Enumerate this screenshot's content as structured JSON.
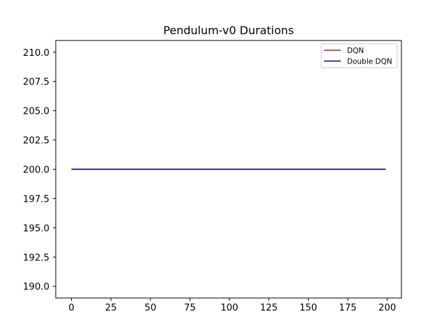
{
  "chart_data": {
    "type": "line",
    "title": "Pendulum-v0 Durations",
    "xlabel": "",
    "ylabel": "",
    "xlim": [
      -9.95,
      208.95
    ],
    "ylim": [
      189.0,
      211.0
    ],
    "xticks": [
      0,
      25,
      50,
      75,
      100,
      125,
      150,
      175,
      200
    ],
    "xtick_labels": [
      "0",
      "25",
      "50",
      "75",
      "100",
      "125",
      "150",
      "175",
      "200"
    ],
    "yticks": [
      190.0,
      192.5,
      195.0,
      197.5,
      200.0,
      202.5,
      205.0,
      207.5,
      210.0
    ],
    "ytick_labels": [
      "190.0",
      "192.5",
      "195.0",
      "197.5",
      "200.0",
      "202.5",
      "205.0",
      "207.5",
      "210.0"
    ],
    "grid": false,
    "legend_position": "top-right",
    "series": [
      {
        "name": "DQN",
        "color": "#b22222",
        "x": [
          0,
          199
        ],
        "values": [
          200,
          200
        ]
      },
      {
        "name": "Double DQN",
        "color": "#000080",
        "x": [
          0,
          199
        ],
        "values": [
          200,
          200
        ]
      }
    ]
  }
}
